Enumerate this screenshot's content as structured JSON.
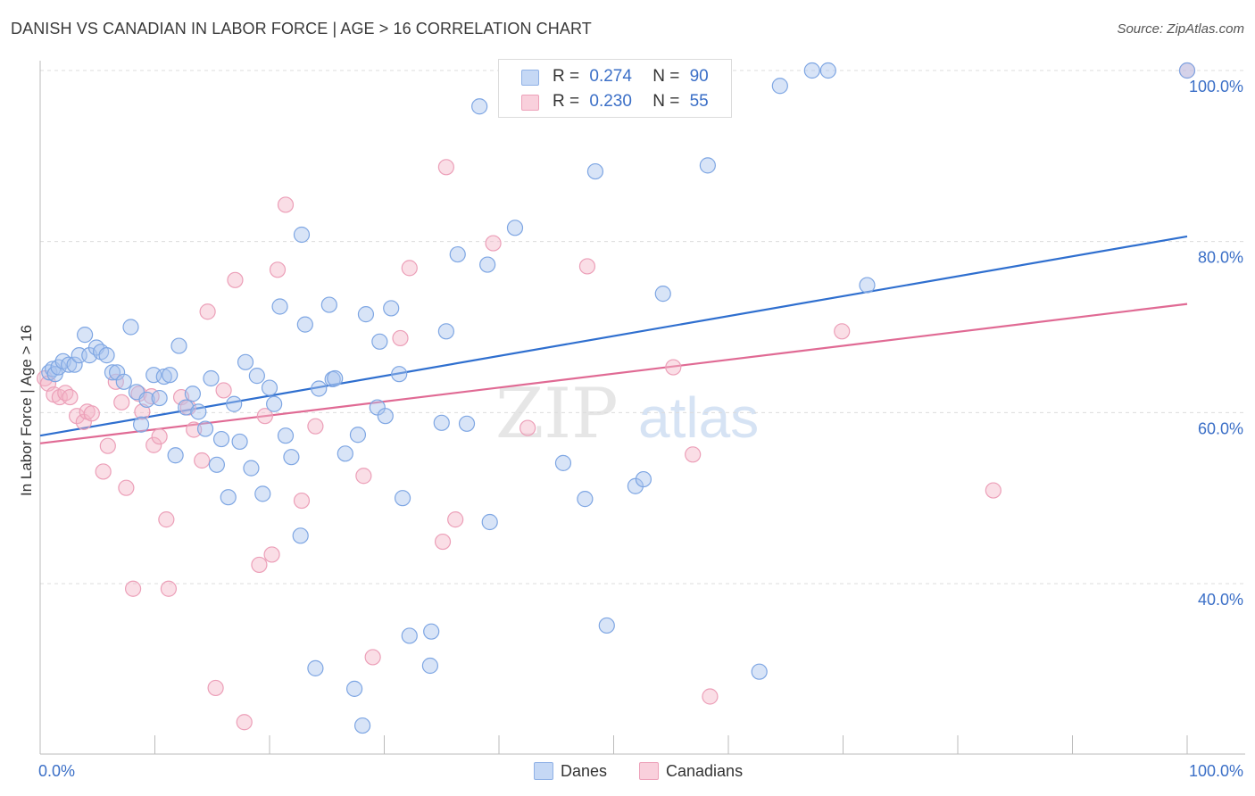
{
  "title": "DANISH VS CANADIAN IN LABOR FORCE | AGE > 16 CORRELATION CHART",
  "source": "Source: ZipAtlas.com",
  "colors": {
    "danes": "#a8c4ee",
    "danes_line": "#2f6fcf",
    "canadians": "#f4b6c8",
    "canadians_line": "#e06a94",
    "accent_text": "#3b6fc7"
  },
  "legend": {
    "danes": {
      "r_label": "R =",
      "r_value": "0.274",
      "n_label": "N =",
      "n_value": "90"
    },
    "canadians": {
      "r_label": "R =",
      "r_value": "0.230",
      "n_label": "N =",
      "n_value": "55"
    }
  },
  "watermark": {
    "part1": "ZIP",
    "part2": "atlas"
  },
  "chart_data": {
    "type": "scatter",
    "title": "DANISH VS CANADIAN IN LABOR FORCE | AGE > 16 CORRELATION CHART",
    "xlabel": "",
    "ylabel": "In Labor Force | Age > 16",
    "xlim": [
      0,
      100
    ],
    "ylim": [
      22,
      102
    ],
    "x_tick_labels": [
      "0.0%",
      "100.0%"
    ],
    "y_tick_labels": [
      "40.0%",
      "60.0%",
      "80.0%",
      "100.0%"
    ],
    "y_ticks": [
      40,
      60,
      80,
      100
    ],
    "grid": true,
    "legend_position": "bottom-center",
    "series": [
      {
        "name": "Danes",
        "color": "#a8c4ee",
        "trend": {
          "x": [
            0,
            100
          ],
          "y": [
            57.3,
            80.6
          ]
        },
        "points": [
          [
            0.8,
            64.7
          ],
          [
            1.1,
            65.1
          ],
          [
            1.3,
            64.5
          ],
          [
            1.6,
            65.3
          ],
          [
            2.0,
            66.0
          ],
          [
            2.5,
            65.6
          ],
          [
            3.0,
            65.6
          ],
          [
            3.4,
            66.7
          ],
          [
            3.9,
            69.1
          ],
          [
            4.3,
            66.7
          ],
          [
            4.9,
            67.6
          ],
          [
            5.3,
            67.1
          ],
          [
            5.8,
            66.7
          ],
          [
            6.3,
            64.7
          ],
          [
            6.7,
            64.7
          ],
          [
            7.3,
            63.6
          ],
          [
            7.9,
            70.0
          ],
          [
            8.4,
            62.4
          ],
          [
            8.8,
            58.6
          ],
          [
            9.3,
            61.5
          ],
          [
            9.9,
            64.4
          ],
          [
            10.4,
            61.7
          ],
          [
            10.8,
            64.2
          ],
          [
            11.3,
            64.4
          ],
          [
            11.8,
            55.0
          ],
          [
            12.1,
            67.8
          ],
          [
            12.7,
            60.6
          ],
          [
            13.3,
            62.2
          ],
          [
            13.8,
            60.1
          ],
          [
            14.4,
            58.1
          ],
          [
            14.9,
            64.0
          ],
          [
            15.4,
            53.9
          ],
          [
            15.8,
            56.9
          ],
          [
            16.4,
            50.1
          ],
          [
            16.9,
            61.0
          ],
          [
            17.4,
            56.6
          ],
          [
            17.9,
            65.9
          ],
          [
            18.4,
            53.5
          ],
          [
            18.9,
            64.3
          ],
          [
            19.4,
            50.5
          ],
          [
            20.0,
            62.9
          ],
          [
            20.4,
            61.0
          ],
          [
            20.9,
            72.4
          ],
          [
            21.4,
            57.3
          ],
          [
            21.9,
            54.8
          ],
          [
            22.7,
            45.6
          ],
          [
            22.8,
            80.8
          ],
          [
            23.1,
            70.3
          ],
          [
            24.0,
            30.1
          ],
          [
            24.3,
            62.8
          ],
          [
            25.2,
            72.6
          ],
          [
            25.5,
            63.9
          ],
          [
            25.7,
            64.0
          ],
          [
            26.6,
            55.2
          ],
          [
            27.4,
            27.7
          ],
          [
            27.7,
            57.4
          ],
          [
            28.1,
            23.4
          ],
          [
            28.4,
            71.5
          ],
          [
            29.4,
            60.6
          ],
          [
            29.6,
            68.3
          ],
          [
            30.1,
            59.6
          ],
          [
            30.6,
            72.2
          ],
          [
            31.3,
            64.5
          ],
          [
            31.6,
            50.0
          ],
          [
            32.2,
            33.9
          ],
          [
            34.0,
            30.4
          ],
          [
            34.1,
            34.4
          ],
          [
            35.0,
            58.8
          ],
          [
            35.4,
            69.5
          ],
          [
            36.4,
            78.5
          ],
          [
            37.2,
            58.7
          ],
          [
            38.3,
            95.8
          ],
          [
            39.0,
            77.3
          ],
          [
            39.2,
            47.2
          ],
          [
            41.4,
            81.6
          ],
          [
            41.6,
            100.0
          ],
          [
            45.6,
            54.1
          ],
          [
            47.5,
            49.9
          ],
          [
            47.6,
            100.0
          ],
          [
            48.4,
            88.2
          ],
          [
            49.4,
            35.1
          ],
          [
            51.9,
            51.4
          ],
          [
            52.6,
            52.2
          ],
          [
            54.3,
            73.9
          ],
          [
            58.2,
            88.9
          ],
          [
            62.7,
            29.7
          ],
          [
            64.5,
            98.2
          ],
          [
            67.3,
            100.0
          ],
          [
            68.7,
            100.0
          ],
          [
            72.1,
            74.9
          ],
          [
            100.0,
            100.0
          ]
        ]
      },
      {
        "name": "Canadians",
        "color": "#f4b6c8",
        "trend": {
          "x": [
            0,
            100
          ],
          "y": [
            56.4,
            72.7
          ]
        },
        "points": [
          [
            0.4,
            64.0
          ],
          [
            0.7,
            63.4
          ],
          [
            1.2,
            62.1
          ],
          [
            1.7,
            61.8
          ],
          [
            2.2,
            62.3
          ],
          [
            2.6,
            61.8
          ],
          [
            3.2,
            59.6
          ],
          [
            3.8,
            58.9
          ],
          [
            4.1,
            60.1
          ],
          [
            4.5,
            59.9
          ],
          [
            5.5,
            53.1
          ],
          [
            5.9,
            56.1
          ],
          [
            6.6,
            63.6
          ],
          [
            7.1,
            61.2
          ],
          [
            7.5,
            51.2
          ],
          [
            8.1,
            39.4
          ],
          [
            8.6,
            62.2
          ],
          [
            8.9,
            60.1
          ],
          [
            9.7,
            61.9
          ],
          [
            9.9,
            56.2
          ],
          [
            10.4,
            57.2
          ],
          [
            11.0,
            47.5
          ],
          [
            11.2,
            39.4
          ],
          [
            12.3,
            61.8
          ],
          [
            12.9,
            60.6
          ],
          [
            13.4,
            58.0
          ],
          [
            14.1,
            54.4
          ],
          [
            14.6,
            71.8
          ],
          [
            15.3,
            27.8
          ],
          [
            16.0,
            62.6
          ],
          [
            17.0,
            75.5
          ],
          [
            17.8,
            23.8
          ],
          [
            19.1,
            42.2
          ],
          [
            19.6,
            59.6
          ],
          [
            20.2,
            43.4
          ],
          [
            20.7,
            76.7
          ],
          [
            21.4,
            84.3
          ],
          [
            22.8,
            49.7
          ],
          [
            24.0,
            58.4
          ],
          [
            28.2,
            52.6
          ],
          [
            29.0,
            31.4
          ],
          [
            31.4,
            68.7
          ],
          [
            32.2,
            76.9
          ],
          [
            35.1,
            44.9
          ],
          [
            35.4,
            88.7
          ],
          [
            36.2,
            47.5
          ],
          [
            39.5,
            79.8
          ],
          [
            40.8,
            100.0
          ],
          [
            42.5,
            58.2
          ],
          [
            47.7,
            77.1
          ],
          [
            55.2,
            65.3
          ],
          [
            56.9,
            55.1
          ],
          [
            58.4,
            26.8
          ],
          [
            69.9,
            69.5
          ],
          [
            83.1,
            50.9
          ],
          [
            100.0,
            100.0
          ]
        ]
      }
    ]
  },
  "bottom_legend": {
    "danes": "Danes",
    "canadians": "Canadians"
  }
}
